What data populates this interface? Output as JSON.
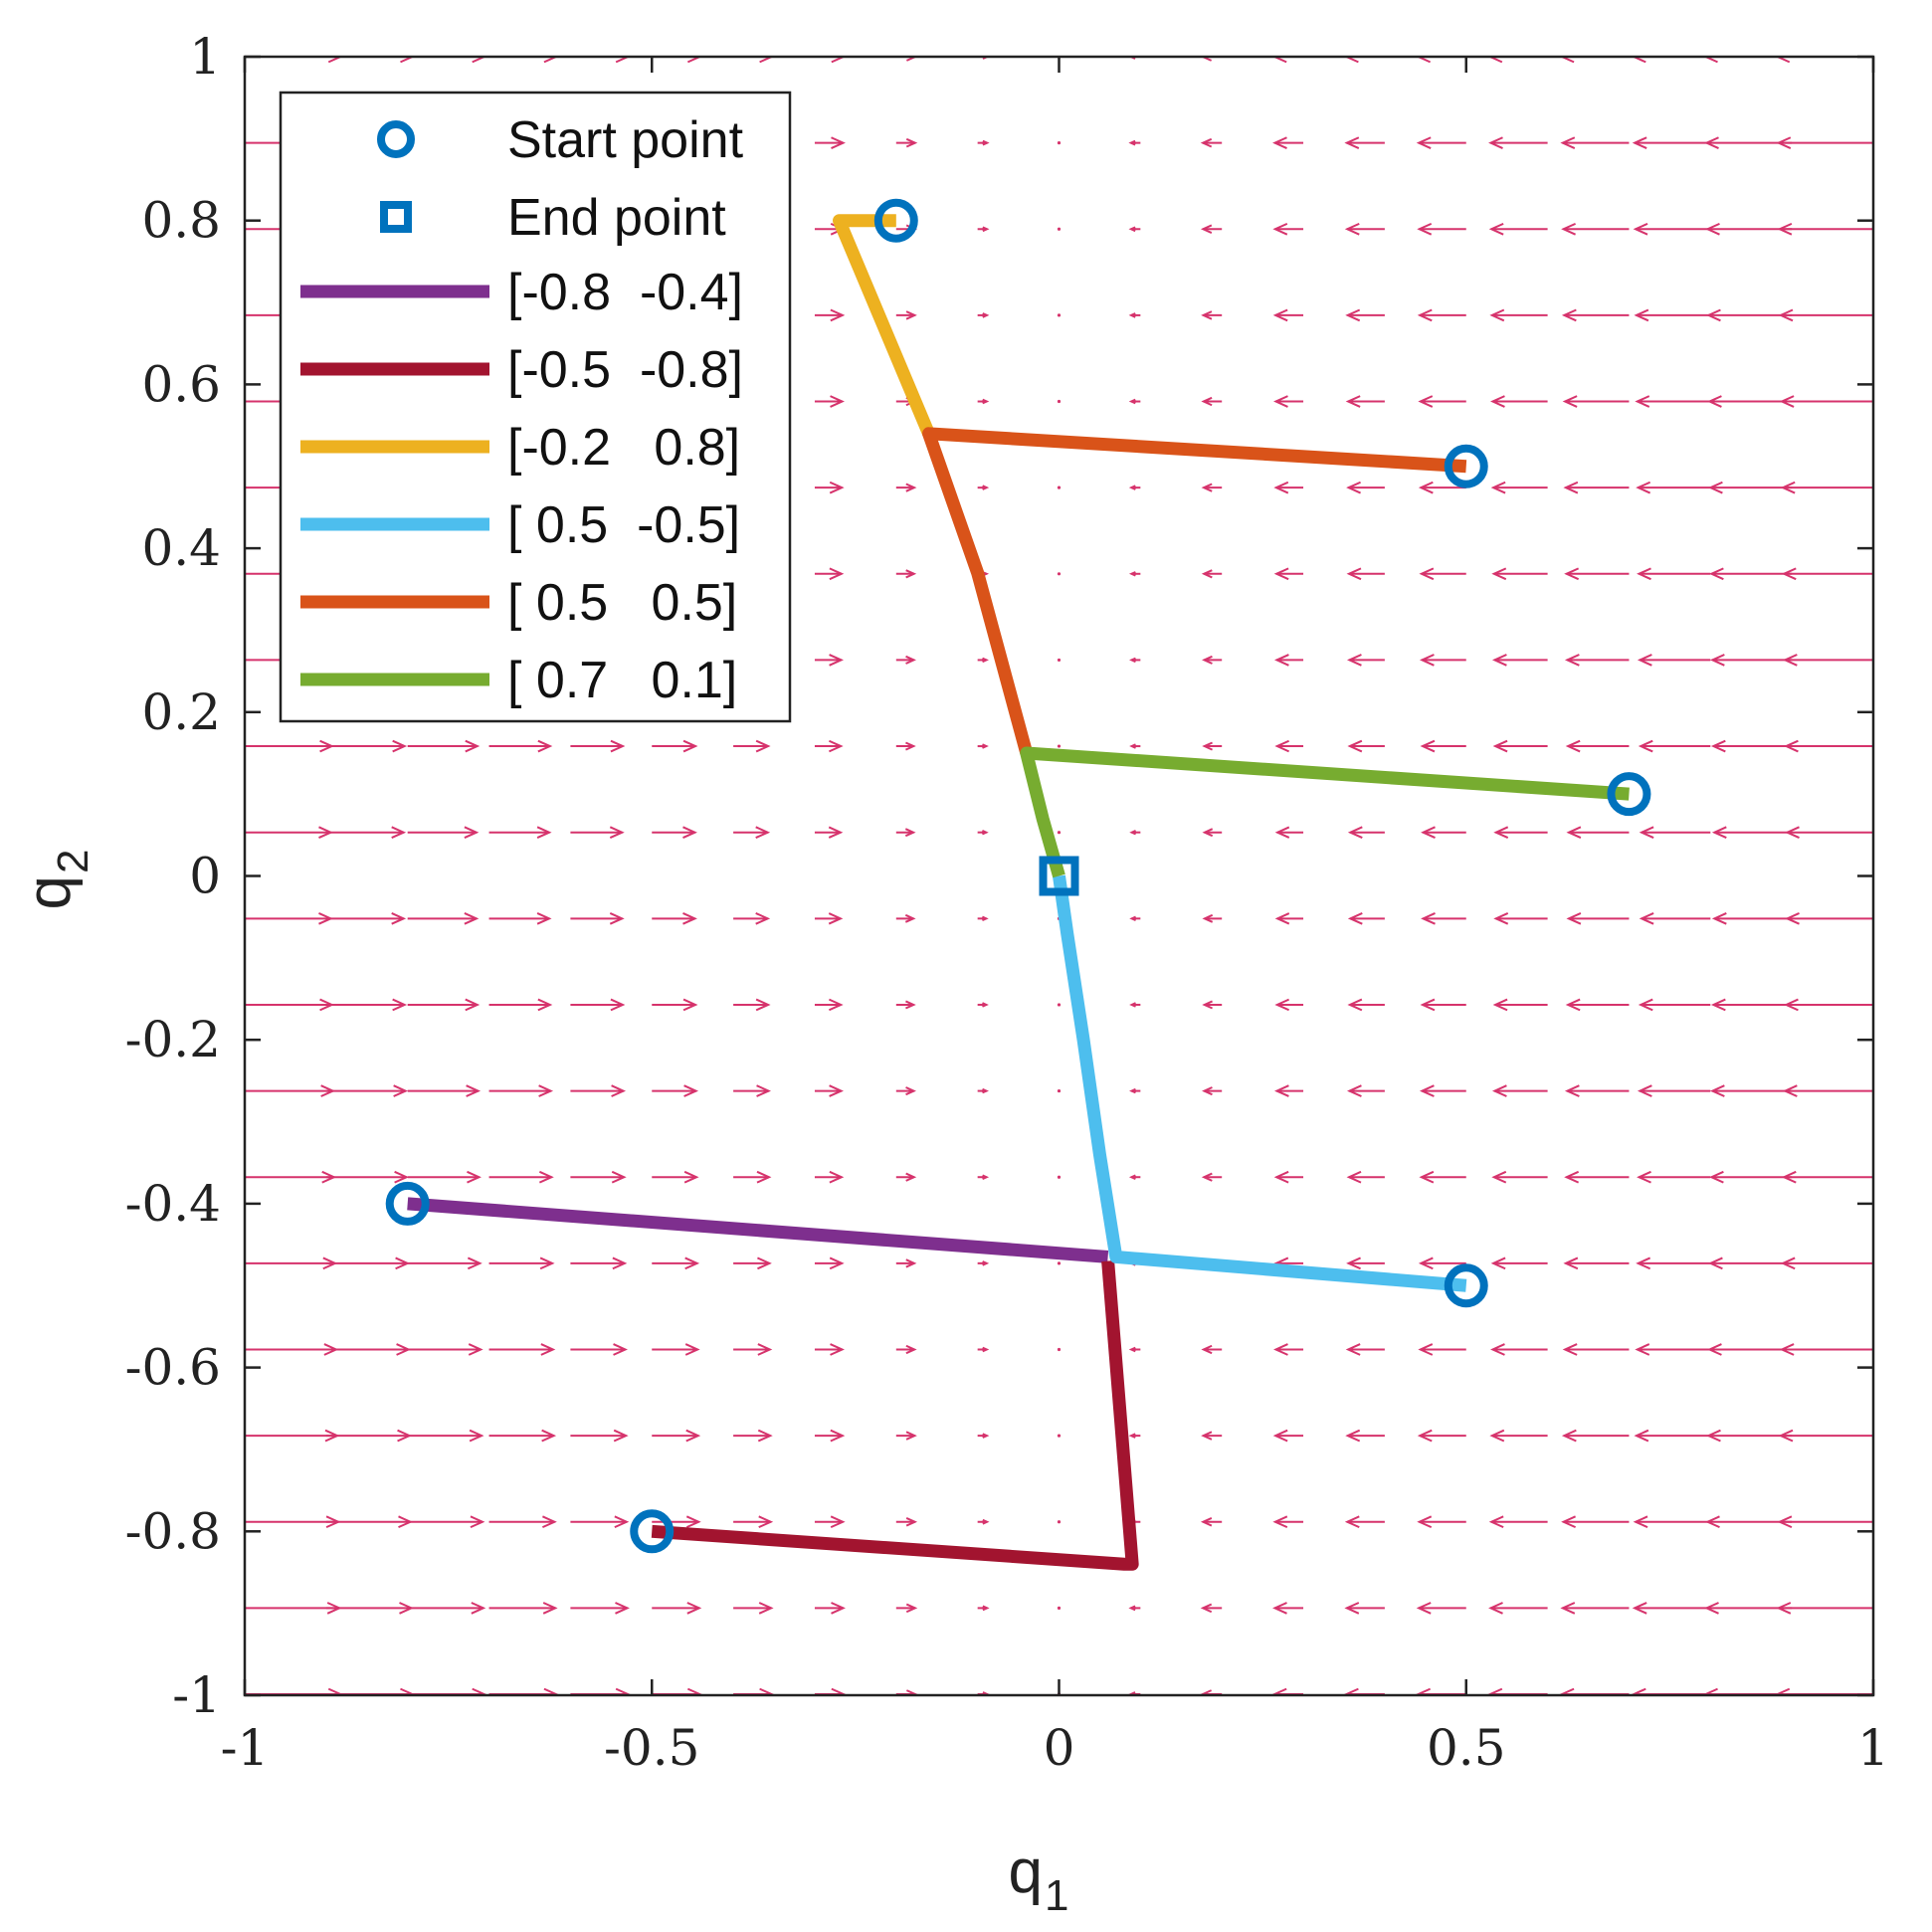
{
  "chart_data": {
    "type": "line",
    "title": "",
    "xlabel": "q",
    "xlabel_sub": "1",
    "ylabel": "q",
    "ylabel_sub": "2",
    "xlim": [
      -1,
      1
    ],
    "ylim": [
      -1,
      1
    ],
    "xticks": [
      -1,
      -0.5,
      0,
      0.5,
      1
    ],
    "yticks": [
      -1,
      -0.8,
      -0.6,
      -0.4,
      -0.2,
      0,
      0.2,
      0.4,
      0.6,
      0.8,
      1
    ],
    "xtick_labels": [
      "-1",
      "-0.5",
      "0",
      "0.5",
      "1"
    ],
    "ytick_labels": [
      "-1",
      "-0.8",
      "-0.6",
      "-0.4",
      "-0.2",
      "0",
      "0.2",
      "0.4",
      "0.6",
      "0.8",
      "1"
    ],
    "grid": false,
    "legend_position": "top-left",
    "legend": {
      "start_label": "Start point",
      "end_label": "End point"
    },
    "marker_color": "#0072BD",
    "field_color": "#D6336C",
    "field": {
      "x_start": -1.0,
      "x_step": 0.1,
      "y_start": 1.0,
      "y_step": -0.1052,
      "nx": 21,
      "ny": 20,
      "u_scale": -0.105
    },
    "series": [
      {
        "name": "[-0.8  -0.4]",
        "color": "#7E2F8E",
        "start": [
          -0.8,
          -0.4
        ],
        "x": [
          -0.8,
          0.06
        ],
        "y": [
          -0.4,
          -0.465
        ]
      },
      {
        "name": "[-0.5  -0.8]",
        "color": "#A2142F",
        "start": [
          -0.5,
          -0.8
        ],
        "x": [
          -0.5,
          0.08,
          0.09,
          0.06
        ],
        "y": [
          -0.8,
          -0.84,
          -0.84,
          -0.47
        ]
      },
      {
        "name": "[-0.2   0.8]",
        "color": "#EDB120",
        "start": [
          -0.2,
          0.8
        ],
        "x": [
          -0.2,
          -0.27,
          -0.16
        ],
        "y": [
          0.8,
          0.8,
          0.54
        ]
      },
      {
        "name": "[ 0.5  -0.5]",
        "color": "#4DBEEE",
        "start": [
          0.5,
          -0.5
        ],
        "x": [
          0.5,
          0.07,
          0.05,
          0.03,
          0.01,
          0.0
        ],
        "y": [
          -0.5,
          -0.465,
          -0.34,
          -0.2,
          -0.07,
          0.0
        ]
      },
      {
        "name": "[ 0.5   0.5]",
        "color": "#D95319",
        "start": [
          0.5,
          0.5
        ],
        "x": [
          0.5,
          -0.16,
          -0.1,
          -0.04
        ],
        "y": [
          0.5,
          0.54,
          0.37,
          0.15
        ]
      },
      {
        "name": "[ 0.7   0.1]",
        "color": "#77AC30",
        "start": [
          0.7,
          0.1
        ],
        "x": [
          0.7,
          -0.04,
          -0.02,
          0.0
        ],
        "y": [
          0.1,
          0.15,
          0.07,
          0.0
        ]
      }
    ],
    "end_point": [
      0,
      0
    ]
  }
}
